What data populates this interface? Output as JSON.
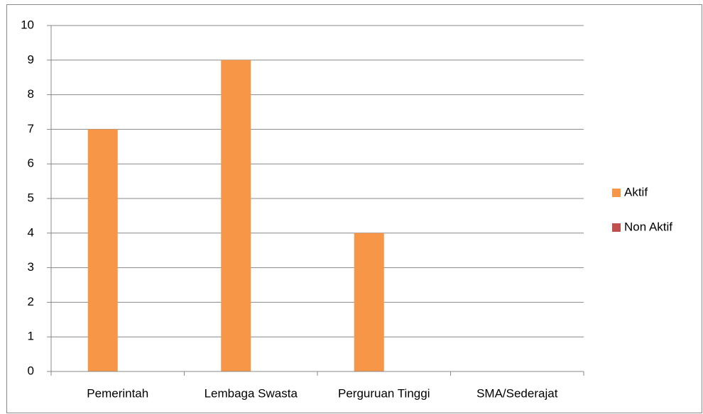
{
  "chart_data": {
    "type": "bar",
    "categories": [
      "Pemerintah",
      "Lembaga Swasta",
      "Perguruan Tinggi",
      "SMA/Sederajat"
    ],
    "series": [
      {
        "name": "Aktif",
        "color": "#F79646",
        "values": [
          7,
          9,
          4,
          0
        ]
      },
      {
        "name": "Non Aktif",
        "color": "#C0504D",
        "values": [
          0,
          0,
          0,
          0
        ]
      }
    ],
    "ylim": [
      0,
      10
    ],
    "yticks": [
      0,
      1,
      2,
      3,
      4,
      5,
      6,
      7,
      8,
      9,
      10
    ],
    "grid": true,
    "legend": "right"
  }
}
